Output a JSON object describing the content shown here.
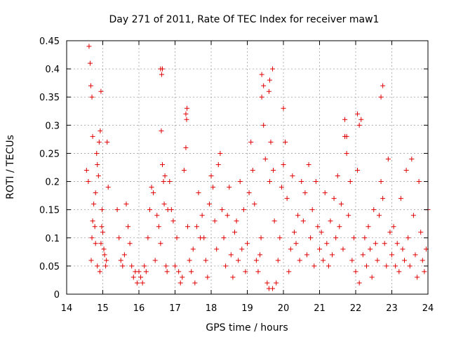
{
  "chart_data": {
    "type": "scatter",
    "title": "Day 271 of 2011, Rate Of TEC Index for receiver maw1",
    "xlabel": "GPS time / hours",
    "ylabel": "ROTI / TECUs",
    "xlim": [
      14,
      24
    ],
    "ylim": [
      0,
      0.45
    ],
    "x_ticks": [
      "14",
      "15",
      "16",
      "17",
      "18",
      "19",
      "20",
      "21",
      "22",
      "23",
      "24"
    ],
    "y_ticks": [
      "0",
      "0.05",
      "0.1",
      "0.15",
      "0.2",
      "0.25",
      "0.3",
      "0.35",
      "0.4",
      "0.45"
    ],
    "grid": true,
    "marker": "plus",
    "color": "#e00000",
    "series": [
      {
        "name": "",
        "x": [
          14.55,
          14.6,
          14.62,
          14.65,
          14.67,
          14.7,
          14.72,
          14.75,
          14.78,
          14.8,
          14.83,
          14.85,
          14.88,
          14.9,
          14.93,
          14.95,
          14.98,
          15.0,
          15.03,
          15.05,
          15.08,
          15.1,
          14.68,
          14.7,
          14.72,
          14.8,
          14.85,
          14.92,
          14.95,
          14.97,
          15.12,
          15.15,
          15.4,
          15.45,
          15.5,
          15.55,
          15.6,
          15.65,
          15.7,
          15.75,
          15.8,
          15.85,
          15.9,
          15.95,
          16.0,
          16.05,
          16.1,
          16.15,
          16.2,
          16.25,
          16.3,
          16.35,
          16.4,
          16.45,
          16.5,
          16.55,
          16.6,
          16.62,
          16.65,
          16.68,
          16.7,
          16.72,
          16.75,
          16.78,
          16.8,
          16.85,
          16.9,
          16.95,
          17.0,
          17.05,
          17.1,
          17.15,
          17.2,
          17.25,
          17.3,
          17.32,
          17.35,
          17.4,
          17.45,
          17.5,
          17.55,
          17.6,
          17.65,
          17.7,
          17.75,
          17.8,
          17.85,
          17.9,
          17.95,
          18.0,
          18.05,
          18.1,
          18.15,
          18.2,
          18.25,
          18.3,
          18.35,
          18.4,
          18.45,
          18.5,
          18.55,
          18.6,
          18.65,
          18.7,
          18.75,
          18.8,
          18.85,
          18.9,
          18.95,
          19.0,
          19.05,
          19.1,
          19.15,
          19.2,
          19.25,
          19.3,
          19.35,
          19.38,
          19.4,
          19.45,
          19.5,
          19.55,
          19.6,
          19.62,
          19.65,
          19.7,
          19.72,
          19.75,
          19.8,
          19.85,
          19.9,
          19.95,
          20.0,
          20.05,
          20.1,
          20.15,
          20.2,
          20.25,
          20.3,
          20.35,
          20.4,
          20.45,
          20.5,
          20.55,
          20.6,
          20.65,
          20.7,
          20.75,
          20.8,
          20.85,
          20.9,
          20.95,
          21.0,
          21.05,
          21.1,
          21.15,
          21.2,
          21.25,
          21.3,
          21.35,
          21.4,
          21.45,
          21.5,
          21.55,
          21.6,
          21.65,
          21.7,
          21.75,
          21.8,
          21.85,
          21.9,
          21.95,
          22.0,
          22.05,
          22.1,
          22.15,
          22.2,
          22.25,
          22.3,
          22.35,
          22.4,
          22.45,
          22.5,
          22.55,
          22.6,
          22.65,
          22.7,
          22.75,
          22.8,
          22.85,
          22.9,
          22.95,
          23.0,
          23.05,
          23.1,
          23.15,
          23.2,
          23.25,
          23.3,
          23.35,
          23.4,
          23.45,
          23.5,
          23.55,
          23.6,
          23.65,
          23.7,
          23.75,
          23.8,
          23.85,
          23.9,
          23.95,
          24.0,
          16.6,
          16.63,
          16.65,
          19.4,
          19.45,
          19.6,
          19.62,
          19.7,
          20.0,
          21.7,
          21.75,
          22.05,
          22.1,
          22.7,
          22.75,
          17.3,
          17.33
        ],
        "y": [
          0.22,
          0.2,
          0.44,
          0.41,
          0.37,
          0.35,
          0.28,
          0.16,
          0.12,
          0.09,
          0.25,
          0.23,
          0.21,
          0.27,
          0.29,
          0.36,
          0.15,
          0.11,
          0.08,
          0.07,
          0.05,
          0.06,
          0.06,
          0.1,
          0.13,
          0.18,
          0.05,
          0.04,
          0.09,
          0.12,
          0.27,
          0.19,
          0.15,
          0.1,
          0.06,
          0.05,
          0.07,
          0.16,
          0.12,
          0.09,
          0.05,
          0.03,
          0.04,
          0.02,
          0.04,
          0.03,
          0.02,
          0.05,
          0.04,
          0.1,
          0.15,
          0.19,
          0.18,
          0.06,
          0.14,
          0.12,
          0.09,
          0.29,
          0.23,
          0.2,
          0.16,
          0.21,
          0.05,
          0.04,
          0.15,
          0.2,
          0.15,
          0.13,
          0.05,
          0.1,
          0.04,
          0.02,
          0.03,
          0.22,
          0.26,
          0.31,
          0.12,
          0.06,
          0.04,
          0.08,
          0.02,
          0.12,
          0.18,
          0.1,
          0.14,
          0.1,
          0.06,
          0.03,
          0.16,
          0.21,
          0.19,
          0.13,
          0.08,
          0.23,
          0.25,
          0.15,
          0.1,
          0.05,
          0.14,
          0.19,
          0.07,
          0.03,
          0.11,
          0.13,
          0.06,
          0.2,
          0.08,
          0.15,
          0.04,
          0.09,
          0.18,
          0.27,
          0.22,
          0.16,
          0.06,
          0.04,
          0.07,
          0.1,
          0.35,
          0.3,
          0.24,
          0.02,
          0.01,
          0.2,
          0.27,
          0.01,
          0.22,
          0.13,
          0.02,
          0.06,
          0.1,
          0.19,
          0.23,
          0.27,
          0.17,
          0.04,
          0.08,
          0.21,
          0.11,
          0.09,
          0.14,
          0.06,
          0.2,
          0.13,
          0.18,
          0.07,
          0.23,
          0.1,
          0.15,
          0.05,
          0.2,
          0.12,
          0.08,
          0.11,
          0.06,
          0.18,
          0.09,
          0.05,
          0.13,
          0.07,
          0.17,
          0.1,
          0.21,
          0.12,
          0.16,
          0.08,
          0.28,
          0.25,
          0.14,
          0.2,
          0.06,
          0.1,
          0.04,
          0.22,
          0.02,
          0.31,
          0.07,
          0.1,
          0.05,
          0.12,
          0.08,
          0.03,
          0.15,
          0.09,
          0.06,
          0.14,
          0.2,
          0.17,
          0.09,
          0.05,
          0.24,
          0.11,
          0.07,
          0.12,
          0.05,
          0.09,
          0.04,
          0.17,
          0.08,
          0.06,
          0.22,
          0.1,
          0.05,
          0.24,
          0.14,
          0.07,
          0.03,
          0.2,
          0.11,
          0.06,
          0.04,
          0.08,
          0.15,
          0.4,
          0.39,
          0.4,
          0.39,
          0.37,
          0.36,
          0.38,
          0.4,
          0.33,
          0.31,
          0.28,
          0.32,
          0.3,
          0.35,
          0.37,
          0.32,
          0.33
        ]
      }
    ]
  }
}
